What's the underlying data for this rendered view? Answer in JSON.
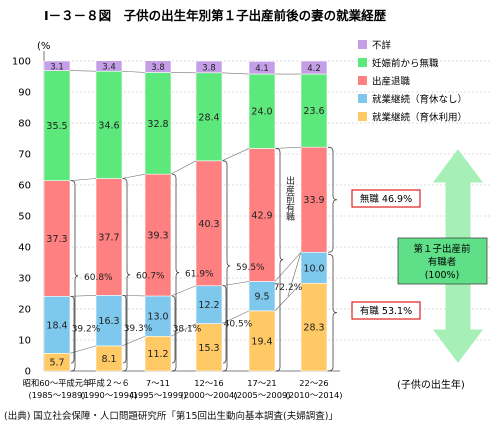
{
  "chart_data": {
    "type": "bar",
    "stacked": true,
    "title": "Ⅰ－３－８図　子供の出生年別第１子出産前後の妻の就業経歴",
    "ylabel": "(%",
    "xlabel": "(子供の出生年)",
    "ylim": [
      0,
      100
    ],
    "yticks": [
      "0",
      "10",
      "20",
      "30",
      "40",
      "50",
      "60",
      "70",
      "80",
      "90",
      "100"
    ],
    "categories": [
      {
        "label": "昭和60～平成元年",
        "sub": "(1985～1989)"
      },
      {
        "label": "平成２～６",
        "sub": "(1990～1994)"
      },
      {
        "label": "7～11",
        "sub": "(1995～1999)"
      },
      {
        "label": "12～16",
        "sub": "(2000～2004)"
      },
      {
        "label": "17～21",
        "sub": "(2005～2009)"
      },
      {
        "label": "22～26",
        "sub": "(2010～2014)"
      }
    ],
    "series": [
      {
        "name": "就業継続（育休利用）",
        "color": "#ffc966",
        "values": [
          5.7,
          8.1,
          11.2,
          15.3,
          19.4,
          28.3
        ],
        "labels": [
          "5.7",
          "8.1",
          "11.2",
          "15.3",
          "19.4",
          "28.3"
        ]
      },
      {
        "name": "就業継続（育休なし）",
        "color": "#7ec8ee",
        "values": [
          18.4,
          16.3,
          13.0,
          12.2,
          9.5,
          10.0
        ],
        "labels": [
          "18.4",
          "16.3",
          "13.0",
          "12.2",
          "9.5",
          "10.0"
        ]
      },
      {
        "name": "出産退職",
        "color": "#ff8080",
        "values": [
          37.3,
          37.7,
          39.3,
          40.3,
          42.9,
          33.9
        ],
        "labels": [
          "37.3",
          "37.7",
          "39.3",
          "40.3",
          "42.9",
          "33.9"
        ]
      },
      {
        "name": "妊娠前から無職",
        "color": "#5ce87a",
        "values": [
          35.5,
          34.6,
          32.8,
          28.4,
          24.0,
          23.6
        ],
        "labels": [
          "35.5",
          "34.6",
          "32.8",
          "28.4",
          "24.0",
          "23.6"
        ]
      },
      {
        "name": "不詳",
        "color": "#c49ee6",
        "values": [
          3.1,
          3.4,
          3.8,
          3.8,
          4.1,
          4.2
        ],
        "labels": [
          "3.1",
          "3.4",
          "3.8",
          "3.8",
          "4.1",
          "4.2"
        ]
      }
    ],
    "legend_position": "top-right",
    "grid": true,
    "employed_before_birth": [
      "60.8%",
      "60.7%",
      "61.9%",
      "59.5%"
    ],
    "continued_share": [
      "39.2%",
      "39.3%",
      "38.1%",
      "40.5%"
    ],
    "annotations": {
      "vertical_label": "出産前有職",
      "vertical_value": "72.2%",
      "mushoku": "無職 46.9%",
      "yushoku": "有職 53.1%",
      "arrow_label": [
        "第１子出産前",
        "有職者",
        "(100%)"
      ]
    },
    "source": "(出典) 国立社会保障・人口問題研究所「第15回出生動向基本調査(夫婦調査)」"
  }
}
